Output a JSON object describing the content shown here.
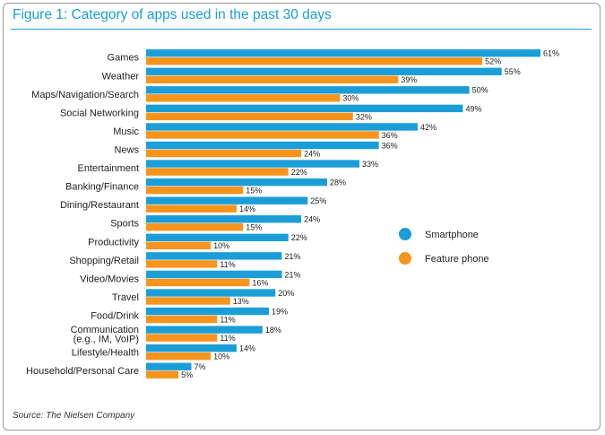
{
  "title": "Figure 1: Category of apps used in the past 30 days",
  "source": "Source: The Nielsen Company",
  "colors": {
    "smartphone": "#1b9ed8",
    "feature": "#f7941d",
    "title": "#1b9ed8"
  },
  "chart_data": {
    "type": "bar",
    "orientation": "horizontal",
    "title": "Figure 1: Category of apps used in the past 30 days",
    "categories": [
      "Games",
      "Weather",
      "Maps/Navigation/Search",
      "Social Networking",
      "Music",
      "News",
      "Entertainment",
      "Banking/Finance",
      "Dining/Restaurant",
      "Sports",
      "Productivity",
      "Shopping/Retail",
      "Video/Movies",
      "Travel",
      "Food/Drink",
      "Communication\n(e.g., IM, VoIP)",
      "Lifestyle/Health",
      "Household/Personal Care"
    ],
    "series": [
      {
        "name": "Smartphone",
        "values": [
          61,
          55,
          50,
          49,
          42,
          36,
          33,
          28,
          25,
          24,
          22,
          21,
          21,
          20,
          19,
          18,
          14,
          7
        ]
      },
      {
        "name": "Feature phone",
        "values": [
          52,
          39,
          30,
          32,
          36,
          24,
          22,
          15,
          14,
          15,
          10,
          11,
          16,
          13,
          11,
          11,
          10,
          5
        ]
      }
    ],
    "value_suffix": "%",
    "xlim": [
      0,
      61
    ],
    "grid": false,
    "legend_position": "right"
  }
}
